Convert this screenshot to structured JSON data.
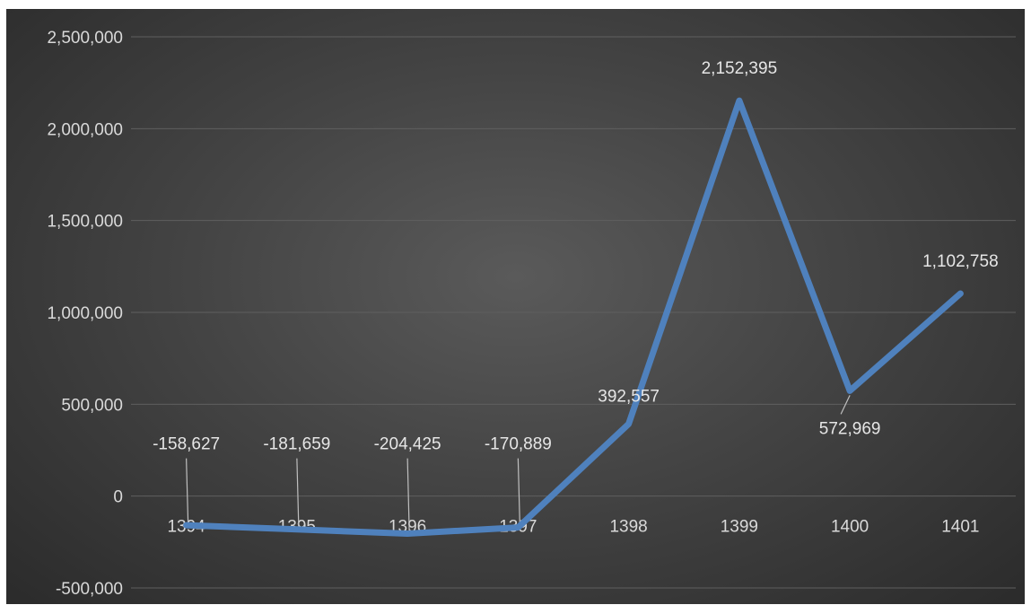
{
  "chart_data": {
    "type": "line",
    "title": "",
    "xlabel": "",
    "ylabel": "",
    "categories": [
      "1394",
      "1395",
      "1396",
      "1397",
      "1398",
      "1399",
      "1400",
      "1401"
    ],
    "series": [
      {
        "values": [
          -158627,
          -181659,
          -204425,
          -170889,
          392557,
          2152395,
          572969,
          1102758
        ]
      }
    ],
    "data_labels": [
      "-158,627",
      "-181,659",
      "-204,425",
      "-170,889",
      "392,557",
      "2,152,395",
      "572,969",
      "1,102,758"
    ],
    "ylim": [
      -500000,
      2500000
    ],
    "yticks": [
      -500000,
      0,
      500000,
      1000000,
      1500000,
      2000000,
      2500000
    ],
    "ytick_labels": [
      "-500,000",
      "0",
      "500,000",
      "1,000,000",
      "1,500,000",
      "2,000,000",
      "2,500,000"
    ],
    "grid": true,
    "legend": "none",
    "colors": {
      "line": "#4f81bd",
      "grid": "#5f5f5f",
      "text": "#d9d9d9",
      "leader": "#bfbfbf"
    }
  }
}
